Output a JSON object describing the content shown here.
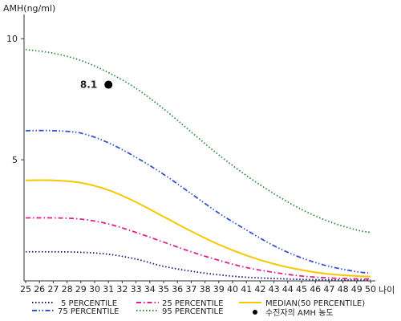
{
  "chart_data": {
    "type": "line",
    "title": "",
    "ylabel": "AMH(ng/ml)",
    "xlabel": "나이",
    "xlim": [
      25,
      50
    ],
    "ylim": [
      0,
      11
    ],
    "x_ticks": [
      25,
      26,
      27,
      28,
      29,
      30,
      31,
      32,
      33,
      34,
      35,
      36,
      37,
      38,
      39,
      40,
      41,
      42,
      43,
      44,
      45,
      46,
      47,
      48,
      49,
      50
    ],
    "x_tick_labels": [
      "25",
      "26",
      "27",
      "28",
      "29",
      "30",
      "31",
      "32",
      "33",
      "34",
      "35",
      "36",
      "37",
      "38",
      "39",
      "40",
      "41",
      "42",
      "43",
      "44",
      "45",
      "46",
      "47",
      "48",
      "49",
      "50"
    ],
    "y_ticks": [
      5,
      10
    ],
    "y_tick_labels": [
      "5",
      "10"
    ],
    "grid": false,
    "legend_position": "bottom",
    "series": [
      {
        "name": "5 PERCENTILE",
        "color": "#1a1a6e",
        "style": "dotted",
        "x": [
          25,
          27,
          29,
          31,
          33,
          35,
          37,
          39,
          41,
          43,
          45,
          47,
          49,
          50
        ],
        "values": [
          1.2,
          1.2,
          1.18,
          1.1,
          0.9,
          0.6,
          0.4,
          0.25,
          0.15,
          0.1,
          0.06,
          0.04,
          0.03,
          0.03
        ]
      },
      {
        "name": "25 PERCENTILE",
        "color": "#e0208c",
        "style": "dashdot",
        "x": [
          25,
          27,
          29,
          31,
          33,
          35,
          37,
          39,
          41,
          43,
          45,
          47,
          49,
          50
        ],
        "values": [
          2.6,
          2.6,
          2.55,
          2.35,
          2.0,
          1.6,
          1.2,
          0.85,
          0.55,
          0.35,
          0.2,
          0.12,
          0.08,
          0.08
        ]
      },
      {
        "name": "MEDIAN(50 PERCENTILE)",
        "color": "#f5c800",
        "style": "solid",
        "x": [
          25,
          27,
          29,
          31,
          33,
          35,
          37,
          39,
          41,
          43,
          45,
          47,
          49,
          50
        ],
        "values": [
          4.15,
          4.15,
          4.05,
          3.75,
          3.25,
          2.65,
          2.05,
          1.5,
          1.05,
          0.7,
          0.45,
          0.28,
          0.2,
          0.18
        ]
      },
      {
        "name": "75 PERCENTILE",
        "color": "#3355cc",
        "style": "dashdotdot",
        "x": [
          25,
          27,
          29,
          31,
          33,
          35,
          37,
          39,
          41,
          43,
          45,
          47,
          49,
          50
        ],
        "values": [
          6.2,
          6.2,
          6.1,
          5.7,
          5.1,
          4.4,
          3.6,
          2.8,
          2.1,
          1.45,
          0.95,
          0.6,
          0.38,
          0.32
        ]
      },
      {
        "name": "95 PERCENTILE",
        "color": "#2e8b3a",
        "style": "dotted",
        "x": [
          25,
          27,
          29,
          31,
          33,
          35,
          37,
          39,
          41,
          43,
          45,
          47,
          49,
          50
        ],
        "values": [
          9.55,
          9.4,
          9.1,
          8.6,
          7.95,
          7.1,
          6.15,
          5.2,
          4.35,
          3.6,
          2.95,
          2.45,
          2.1,
          2.0
        ]
      }
    ],
    "marker": {
      "name": "수진자의 AMH 농도",
      "x": 31,
      "y": 8.1,
      "label": "8.1",
      "color": "#000000"
    }
  }
}
